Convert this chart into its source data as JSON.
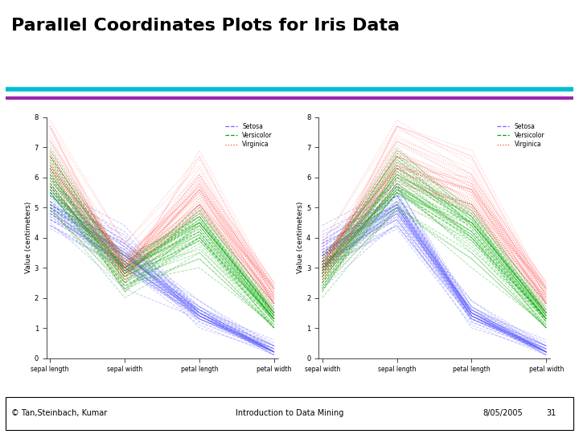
{
  "title": "Parallel Coordinates Plots for Iris Data",
  "title_fontsize": 16,
  "title_fontweight": "bold",
  "title_color": "#000000",
  "separator_color1": "#00bcd4",
  "separator_color2": "#9c27b0",
  "footer_left": "© Tan,Steinbach, Kumar",
  "footer_center": "Introduction to Data Mining",
  "footer_right": "8/05/2005",
  "footer_page": "31",
  "plot1_axes": [
    "sepal length",
    "sepal width",
    "petal length",
    "petal width"
  ],
  "plot2_axes": [
    "sepal width",
    "sepal length",
    "petal length",
    "petal width"
  ],
  "ylabel": "Value (centimeters)",
  "ylim": [
    0,
    8
  ],
  "yticks": [
    0,
    1,
    2,
    3,
    4,
    5,
    6,
    7,
    8
  ],
  "species_colors": {
    "Setosa": "#6666ff",
    "Versicolor": "#00aa00",
    "Virginica": "#ff4444"
  },
  "species_names": [
    "Setosa",
    "Versicolor",
    "Virginica"
  ],
  "background_color": "#ffffff",
  "line_alpha": 0.35,
  "line_width": 0.7
}
